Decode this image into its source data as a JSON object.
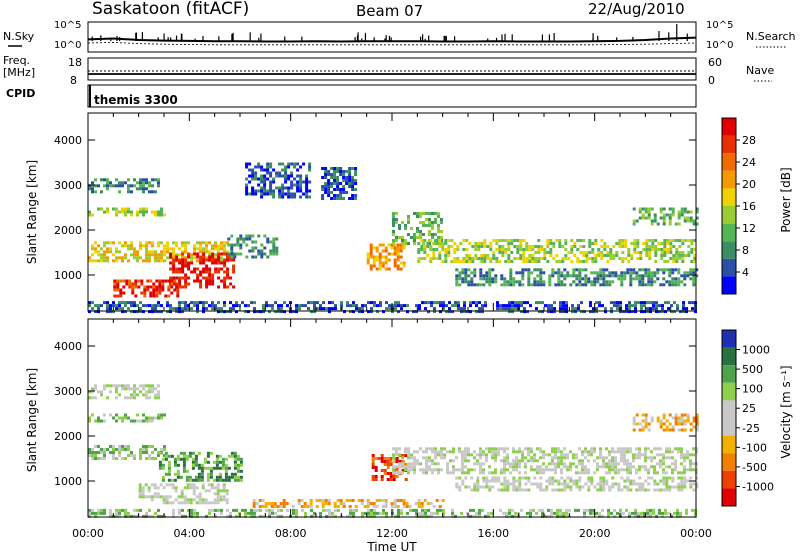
{
  "header": {
    "station": "Saskatoon (fitACF)",
    "beam": "Beam 07",
    "date": "22/Aug/2010"
  },
  "left_labels": {
    "nsky": "N.Sky",
    "freq": "Freq.",
    "freq_unit": "[MHz]",
    "cpid": "CPID"
  },
  "right_labels": {
    "nsearch": "N.Search",
    "nave": "Nave"
  },
  "cpid_value": "themis 3300",
  "colors": {
    "power": [
      "#0000ff",
      "#2c4fa6",
      "#3c8c64",
      "#55b455",
      "#9acd32",
      "#f0d200",
      "#f59a00",
      "#f26a00",
      "#e83000",
      "#e00000"
    ],
    "velocity": [
      "#1f2fb0",
      "#2a7040",
      "#4fa34a",
      "#8ecf4c",
      "#c8c8c8",
      "#c8c8c8",
      "#f4b000",
      "#f28000",
      "#ee4000",
      "#e00000"
    ]
  },
  "chart_data": [
    {
      "type": "line",
      "title": "N.Sky / N.Search",
      "ylim_labels": [
        "10^5",
        "10^0"
      ],
      "right_ylim_labels": [
        "10^5",
        "10^0"
      ],
      "series": [
        {
          "name": "N.Sky",
          "x": [
            0,
            1,
            2,
            3,
            4,
            5,
            6,
            7,
            8,
            9,
            10,
            11,
            12,
            13,
            14,
            15,
            16,
            17,
            18,
            19,
            20,
            21,
            22,
            23,
            24
          ],
          "y_frac": [
            0.42,
            0.45,
            0.4,
            0.38,
            0.37,
            0.36,
            0.36,
            0.35,
            0.35,
            0.36,
            0.35,
            0.36,
            0.36,
            0.36,
            0.35,
            0.35,
            0.36,
            0.35,
            0.35,
            0.35,
            0.36,
            0.37,
            0.4,
            0.45,
            0.48
          ]
        },
        {
          "name": "N.Search",
          "x": [
            0,
            1,
            2,
            3,
            4,
            5,
            6,
            7,
            8,
            9,
            10,
            11,
            12,
            13,
            14,
            15,
            16,
            17,
            18,
            19,
            20,
            21,
            22,
            23,
            24
          ],
          "y_frac": [
            0.3,
            0.32,
            0.28,
            0.26,
            0.25,
            0.24,
            0.24,
            0.24,
            0.24,
            0.24,
            0.24,
            0.24,
            0.24,
            0.24,
            0.24,
            0.24,
            0.24,
            0.24,
            0.24,
            0.24,
            0.24,
            0.25,
            0.26,
            0.28,
            0.3
          ]
        }
      ]
    },
    {
      "type": "line",
      "title": "Freq / Nave",
      "yticks_left": [
        "18",
        "8"
      ],
      "yticks_right": [
        "60",
        "0"
      ],
      "series": [
        {
          "name": "Freq",
          "x": [
            0,
            24
          ],
          "y_frac": [
            0.35,
            0.35
          ]
        },
        {
          "name": "Nave",
          "x": [
            0,
            24
          ],
          "y_frac": [
            0.55,
            0.55
          ]
        }
      ]
    },
    {
      "type": "heatmap",
      "title": "Power",
      "xlabel": "Time UT",
      "ylabel": "Slant Range [km]",
      "xticks": [
        "00:00",
        "04:00",
        "08:00",
        "12:00",
        "16:00",
        "20:00",
        "00:00"
      ],
      "yticks": [
        "1000",
        "2000",
        "3000",
        "4000"
      ],
      "ylim": [
        200,
        4600
      ],
      "xlim": [
        0,
        24
      ],
      "colorbar": {
        "label": "Power [dB]",
        "ticks": [
          "4",
          "8",
          "12",
          "16",
          "20",
          "24",
          "28"
        ]
      },
      "regions": [
        {
          "t0": 0.0,
          "t1": 5.5,
          "r0": 1300,
          "r1": 1750,
          "level": 5
        },
        {
          "t0": 3.2,
          "t1": 5.8,
          "r0": 700,
          "r1": 1500,
          "level": 9
        },
        {
          "t0": 1.0,
          "t1": 3.5,
          "r0": 550,
          "r1": 900,
          "level": 8
        },
        {
          "t0": 0.0,
          "t1": 3.0,
          "r0": 2300,
          "r1": 2500,
          "level": 4
        },
        {
          "t0": 0.0,
          "t1": 2.8,
          "r0": 2850,
          "r1": 3150,
          "level": 2
        },
        {
          "t0": 5.5,
          "t1": 7.5,
          "r0": 1400,
          "r1": 1900,
          "level": 2
        },
        {
          "t0": 6.2,
          "t1": 8.8,
          "r0": 2700,
          "r1": 3500,
          "level": 1
        },
        {
          "t0": 9.2,
          "t1": 10.6,
          "r0": 2700,
          "r1": 3400,
          "level": 1
        },
        {
          "t0": 11.0,
          "t1": 12.5,
          "r0": 1100,
          "r1": 1700,
          "level": 6
        },
        {
          "t0": 12.0,
          "t1": 14.0,
          "r0": 1700,
          "r1": 2400,
          "level": 3
        },
        {
          "t0": 13.0,
          "t1": 24.0,
          "r0": 1300,
          "r1": 1800,
          "level": 4
        },
        {
          "t0": 14.5,
          "t1": 24.0,
          "r0": 800,
          "r1": 1150,
          "level": 2
        },
        {
          "t0": 21.5,
          "t1": 24.0,
          "r0": 2150,
          "r1": 2500,
          "level": 3
        },
        {
          "t0": 0.0,
          "t1": 24.0,
          "r0": 200,
          "r1": 420,
          "level": 1
        }
      ]
    },
    {
      "type": "heatmap",
      "title": "Velocity",
      "xlabel": "Time UT",
      "ylabel": "Slant Range [km]",
      "xticks": [
        "00:00",
        "04:00",
        "08:00",
        "12:00",
        "16:00",
        "20:00",
        "00:00"
      ],
      "yticks": [
        "1000",
        "2000",
        "3000",
        "4000"
      ],
      "ylim": [
        200,
        4600
      ],
      "xlim": [
        0,
        24
      ],
      "colorbar": {
        "label": "Velocity [m s⁻¹]",
        "ticks": [
          "1000",
          "500",
          "100",
          "25",
          "-25",
          "-100",
          "-500",
          "-1000"
        ]
      },
      "regions": [
        {
          "t0": 0.0,
          "t1": 3.0,
          "r0": 1500,
          "r1": 1800,
          "level": 3
        },
        {
          "t0": 2.8,
          "t1": 6.0,
          "r0": 1000,
          "r1": 1650,
          "level": 2
        },
        {
          "t0": 2.0,
          "t1": 5.5,
          "r0": 500,
          "r1": 950,
          "level": 4
        },
        {
          "t0": 0.0,
          "t1": 3.0,
          "r0": 2300,
          "r1": 2500,
          "level": 3
        },
        {
          "t0": 0.0,
          "t1": 2.8,
          "r0": 2850,
          "r1": 3150,
          "level": 4
        },
        {
          "t0": 11.2,
          "t1": 12.6,
          "r0": 1000,
          "r1": 1600,
          "level": 8
        },
        {
          "t0": 12.0,
          "t1": 24.0,
          "r0": 1200,
          "r1": 1750,
          "level": 4
        },
        {
          "t0": 6.5,
          "t1": 14.0,
          "r0": 400,
          "r1": 600,
          "level": 6
        },
        {
          "t0": 14.5,
          "t1": 24.0,
          "r0": 800,
          "r1": 1100,
          "level": 4
        },
        {
          "t0": 21.5,
          "t1": 24.0,
          "r0": 2150,
          "r1": 2500,
          "level": 6
        },
        {
          "t0": 0.0,
          "t1": 24.0,
          "r0": 200,
          "r1": 380,
          "level": 3
        }
      ]
    }
  ]
}
